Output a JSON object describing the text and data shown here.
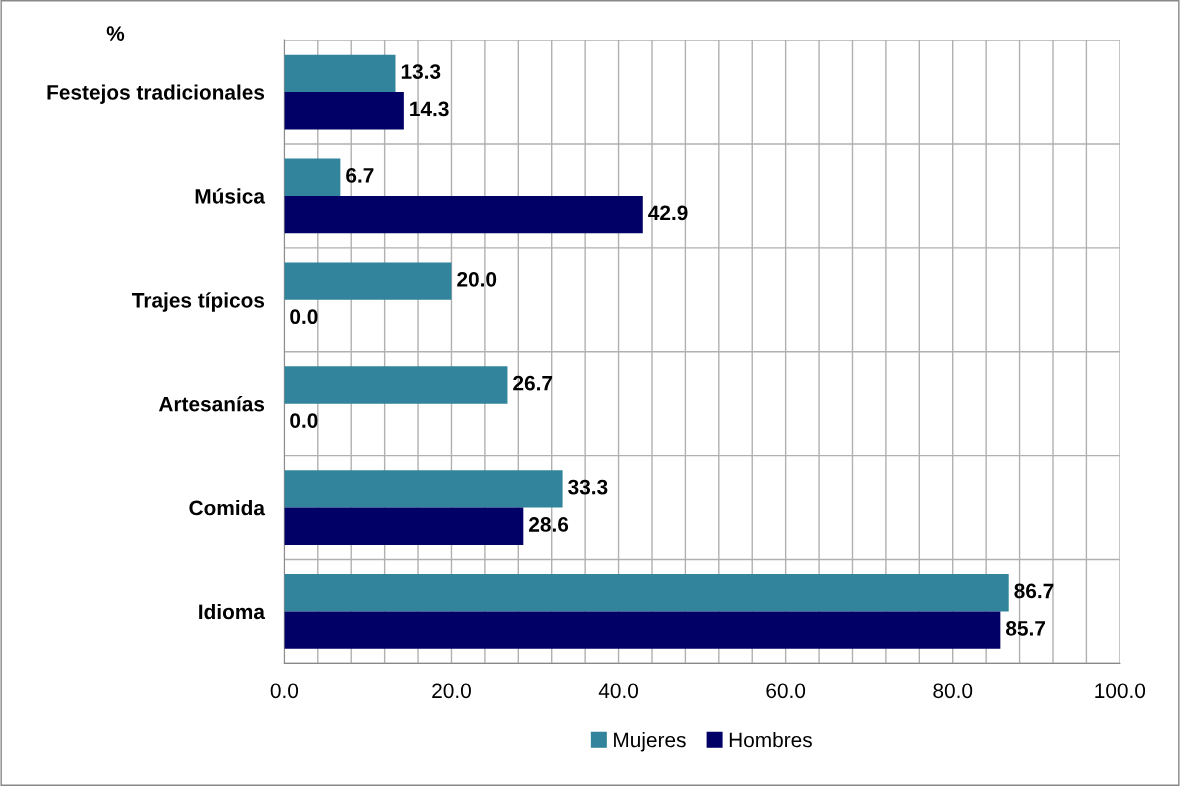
{
  "chart_data": {
    "type": "bar",
    "orientation": "horizontal",
    "categories": [
      "Festejos tradicionales",
      "Música",
      "Trajes típicos",
      "Artesanías",
      "Comida",
      "Idioma"
    ],
    "series": [
      {
        "name": "Mujeres",
        "color": "#31849b",
        "values": [
          13.3,
          6.7,
          20.0,
          26.7,
          33.3,
          86.7
        ],
        "value_labels": [
          "13.3",
          "6.7",
          "20.0",
          "26.7",
          "33.3",
          "86.7"
        ]
      },
      {
        "name": "Hombres",
        "color": "#000066",
        "values": [
          14.3,
          42.9,
          0.0,
          0.0,
          28.6,
          85.7
        ],
        "value_labels": [
          "14.3",
          "42.9",
          "0.0",
          "0.0",
          "28.6",
          "85.7"
        ]
      }
    ],
    "xlim": [
      0,
      100
    ],
    "xticks": [
      {
        "value": 0,
        "label": "0.0"
      },
      {
        "value": 4,
        "label": null
      },
      {
        "value": 8,
        "label": null
      },
      {
        "value": 12,
        "label": null
      },
      {
        "value": 16,
        "label": null
      },
      {
        "value": 20,
        "label": "20.0"
      },
      {
        "value": 24,
        "label": null
      },
      {
        "value": 28,
        "label": null
      },
      {
        "value": 32,
        "label": null
      },
      {
        "value": 36,
        "label": null
      },
      {
        "value": 40,
        "label": "40.0"
      },
      {
        "value": 44,
        "label": null
      },
      {
        "value": 48,
        "label": null
      },
      {
        "value": 52,
        "label": null
      },
      {
        "value": 56,
        "label": null
      },
      {
        "value": 60,
        "label": "60.0"
      },
      {
        "value": 64,
        "label": null
      },
      {
        "value": 68,
        "label": null
      },
      {
        "value": 72,
        "label": null
      },
      {
        "value": 76,
        "label": null
      },
      {
        "value": 80,
        "label": "80.0"
      },
      {
        "value": 84,
        "label": null
      },
      {
        "value": 88,
        "label": null
      },
      {
        "value": 92,
        "label": null
      },
      {
        "value": 96,
        "label": null
      },
      {
        "value": 100,
        "label": "100.0"
      }
    ],
    "annotations": [
      "%"
    ],
    "grid": true,
    "legend": "bottom"
  }
}
